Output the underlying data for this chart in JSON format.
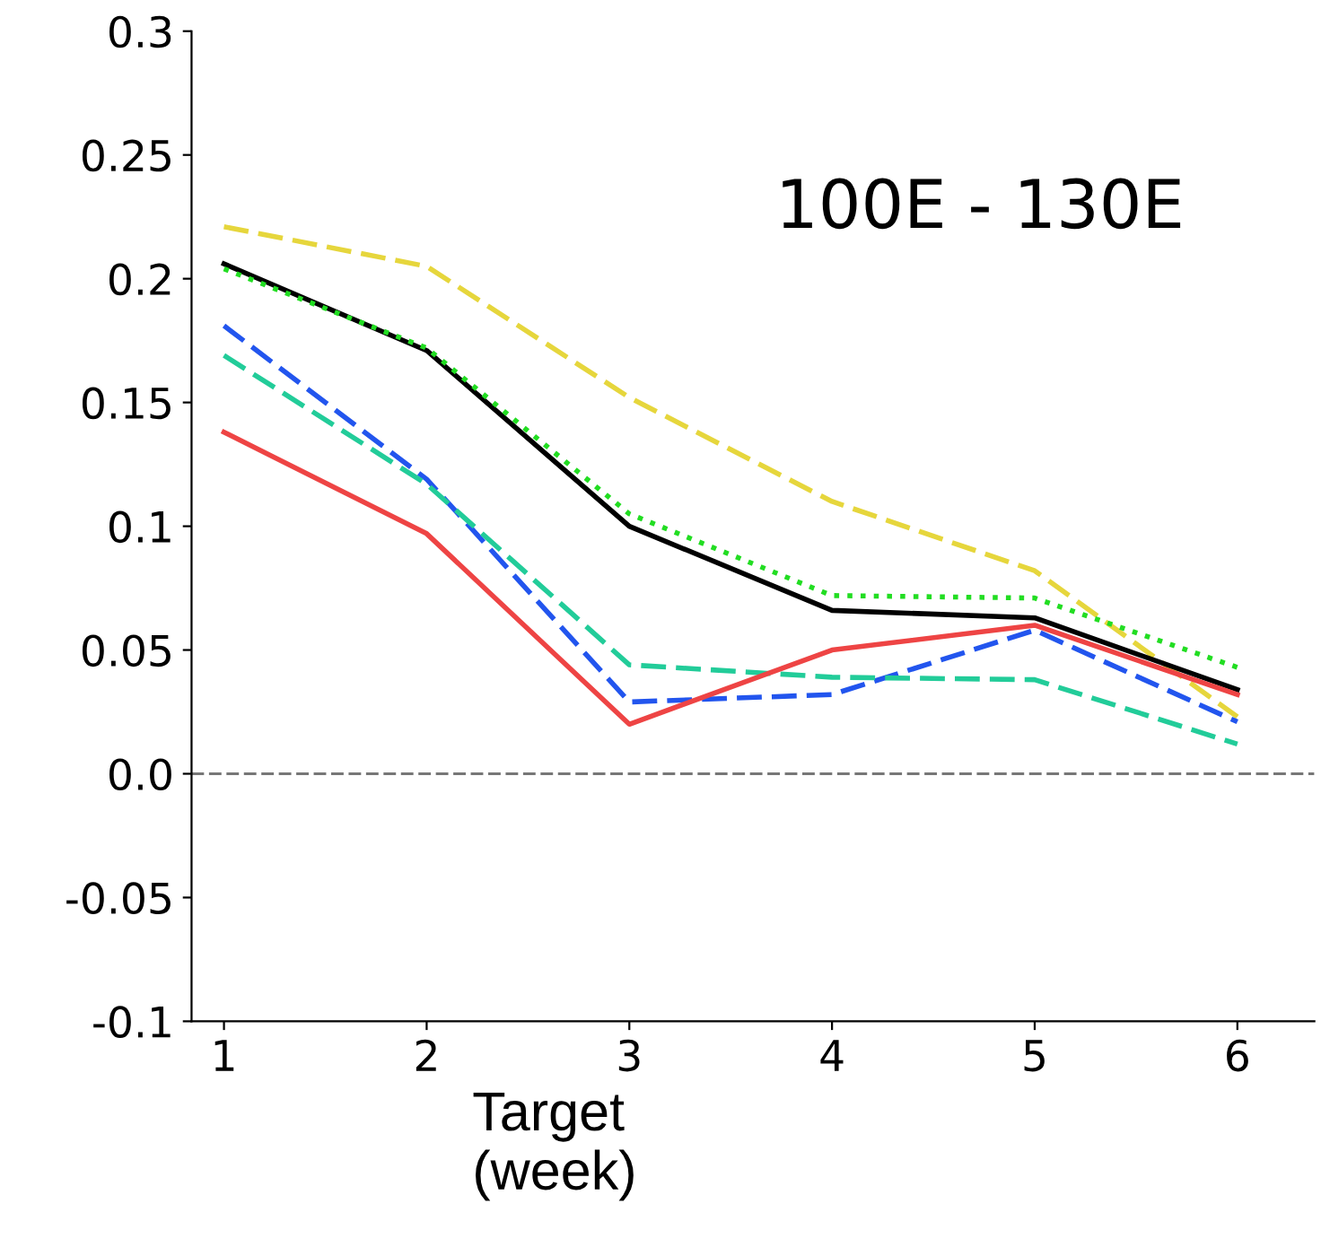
{
  "chart_data": {
    "type": "line",
    "xlabel": "Target\n(week)",
    "annotations": [
      "100E - 130E"
    ],
    "x": [
      1,
      2,
      3,
      4,
      5,
      6
    ],
    "series": [
      {
        "color": "#e6d63c",
        "line_style": "dashed",
        "values": [
          0.221,
          0.205,
          0.152,
          0.11,
          0.082,
          0.023
        ]
      },
      {
        "color": "#000000",
        "line_style": "solid",
        "values": [
          0.206,
          0.171,
          0.1,
          0.066,
          0.063,
          0.034
        ]
      },
      {
        "color": "#22dd22",
        "line_style": "dotted",
        "values": [
          0.204,
          0.172,
          0.105,
          0.072,
          0.071,
          0.043
        ]
      },
      {
        "color": "#2255ee",
        "line_style": "dashed",
        "values": [
          0.181,
          0.119,
          0.029,
          0.032,
          0.058,
          0.021
        ]
      },
      {
        "color": "#22cc99",
        "line_style": "dashed",
        "values": [
          0.169,
          0.117,
          0.044,
          0.039,
          0.038,
          0.012
        ]
      },
      {
        "color": "#ee4444",
        "line_style": "solid",
        "values": [
          0.138,
          0.097,
          0.02,
          0.05,
          0.06,
          0.032
        ]
      }
    ],
    "xlim": [
      0.84,
      6.38
    ],
    "ylim": [
      -0.1,
      0.3
    ],
    "xticks": [
      1,
      2,
      3,
      4,
      5,
      6
    ],
    "yticks": [
      0.3,
      0.25,
      0.2,
      0.15,
      0.1,
      0.05,
      {
        "value": 0,
        "label": "0.0"
      },
      -0.05,
      -0.1
    ],
    "ref_lines": [
      {
        "axis": "y",
        "value": 0,
        "color": "#777777",
        "line_style": "dashed"
      }
    ],
    "grid": false,
    "legend": false,
    "marker": "none"
  }
}
